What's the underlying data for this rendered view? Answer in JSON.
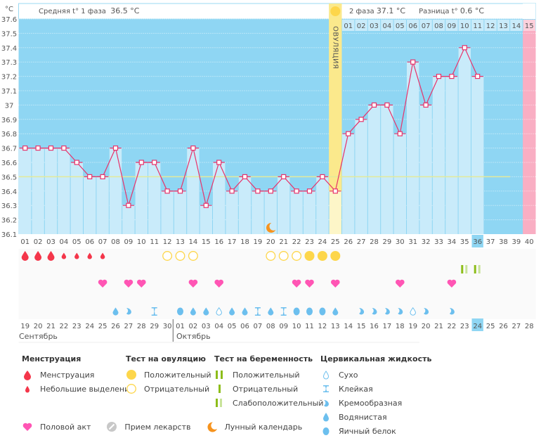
{
  "header": {
    "phase1_label": "Средняя t° 1 фаза",
    "phase1_value": "36.5 °C",
    "phase2_label": "2 фаза",
    "phase2_value": "37.1 °C",
    "diff_label": "Разница t°",
    "diff_value": "0.6 °C",
    "ovulation_label": "ОВУЛЯЦИЯ"
  },
  "chart_data": {
    "type": "bar",
    "title": "",
    "ylabel": "°C",
    "ylim": [
      36.1,
      37.6
    ],
    "yticks": [
      "36.1",
      "36.2",
      "36.3",
      "36.4",
      "36.5",
      "36.6",
      "36.7",
      "36.8",
      "36.9",
      "37",
      "37.1",
      "37.2",
      "37.3",
      "37.4",
      "37.5",
      "37.6"
    ],
    "cycle_days": [
      "01",
      "02",
      "03",
      "04",
      "05",
      "06",
      "07",
      "08",
      "09",
      "10",
      "11",
      "12",
      "13",
      "14",
      "15",
      "16",
      "17",
      "18",
      "19",
      "20",
      "21",
      "22",
      "23",
      "24",
      "25",
      "26",
      "27",
      "28",
      "29",
      "30",
      "31",
      "32",
      "33",
      "34",
      "35",
      "36",
      "37",
      "38",
      "39",
      "40"
    ],
    "temperatures": [
      36.7,
      36.7,
      36.7,
      36.7,
      36.6,
      36.5,
      36.5,
      36.7,
      36.3,
      36.6,
      36.6,
      36.4,
      36.4,
      36.7,
      36.3,
      36.6,
      36.4,
      36.5,
      36.4,
      36.4,
      36.5,
      36.4,
      36.4,
      36.5,
      36.4,
      36.8,
      36.9,
      37.0,
      37.0,
      36.8,
      37.3,
      37.0,
      37.2,
      37.2,
      37.4,
      37.2
    ],
    "coverline": 36.5,
    "ovulation_day": 25,
    "current_day": 36,
    "next_cycle_days": [
      "01",
      "02",
      "03",
      "04",
      "05",
      "06",
      "07",
      "08",
      "09",
      "10",
      "11",
      "12",
      "13",
      "14",
      "15"
    ],
    "calendar_dates": [
      "19",
      "20",
      "21",
      "22",
      "23",
      "24",
      "25",
      "26",
      "27",
      "28",
      "29",
      "30",
      "01",
      "02",
      "03",
      "04",
      "05",
      "06",
      "07",
      "08",
      "09",
      "10",
      "11",
      "12",
      "13",
      "14",
      "15",
      "16",
      "17",
      "18",
      "19",
      "20",
      "21",
      "22",
      "23",
      "24",
      "25",
      "26",
      "27",
      "28"
    ],
    "weekend_indices": [
      2,
      3,
      9,
      10,
      16,
      17,
      23,
      24,
      30,
      31,
      37,
      38
    ],
    "months": [
      "Сентябрь",
      "Октябрь"
    ],
    "lunar_day": 20,
    "menstruation": {
      "1": "heavy",
      "2": "heavy",
      "3": "heavy",
      "4": "light",
      "5": "light",
      "6": "light",
      "7": "light"
    },
    "ovulation_test": {
      "12": "negative",
      "13": "negative",
      "14": "negative",
      "20": "negative",
      "21": "negative",
      "22": "negative",
      "23": "positive",
      "24": "positive",
      "25": "positive"
    },
    "pregnancy_test": {
      "35": "weak",
      "36": "weak"
    },
    "intercourse_days": [
      7,
      9,
      10,
      14,
      16,
      22,
      23,
      25,
      30,
      34
    ],
    "cervical_fluid": {
      "8": "watery",
      "9": "creamy",
      "11": "sticky",
      "13": "eggwhite",
      "14": "watery",
      "15": "watery",
      "16": "dry",
      "17": "watery",
      "18": "watery",
      "19": "sticky",
      "20": "watery",
      "21": "sticky",
      "22": "eggwhite",
      "23": "eggwhite",
      "24": "eggwhite",
      "25": "watery",
      "27": "creamy",
      "28": "creamy",
      "29": "creamy",
      "30": "creamy",
      "31": "dry",
      "32": "creamy",
      "34": "creamy"
    }
  },
  "colors": {
    "sky": "#8fd6f3",
    "bar": "#c9ebfa",
    "line": "#e8326a",
    "coverline": "#e3ea9a",
    "ovulation": "#fbe98c",
    "next_cycle": "#f9aec3",
    "blood": "#f4364a",
    "heart": "#ff55b4",
    "sun": "#fdd64b",
    "fluid": "#6cbfee",
    "test_green": "#8dbd1a",
    "test_light": "#c8e39a",
    "moon": "#f6931e",
    "weekend": "#e8326a"
  },
  "legend": {
    "menstruation": {
      "title": "Менструация",
      "items": [
        "Менструация",
        "Небольшие выделения"
      ]
    },
    "ovulation_test": {
      "title": "Тест на овуляцию",
      "items": [
        "Положительный",
        "Отрицательный"
      ]
    },
    "pregnancy_test": {
      "title": "Тест на беременность",
      "items": [
        "Положительный",
        "Отрицательный",
        "Слабоположительный"
      ]
    },
    "cervical": {
      "title": "Цервикальная жидкость",
      "items": [
        "Сухо",
        "Клейкая",
        "Кремообразная",
        "Водянистая",
        "Яичный белок"
      ]
    },
    "other": [
      "Половой акт",
      "Прием лекарств",
      "Лунный календарь"
    ]
  }
}
